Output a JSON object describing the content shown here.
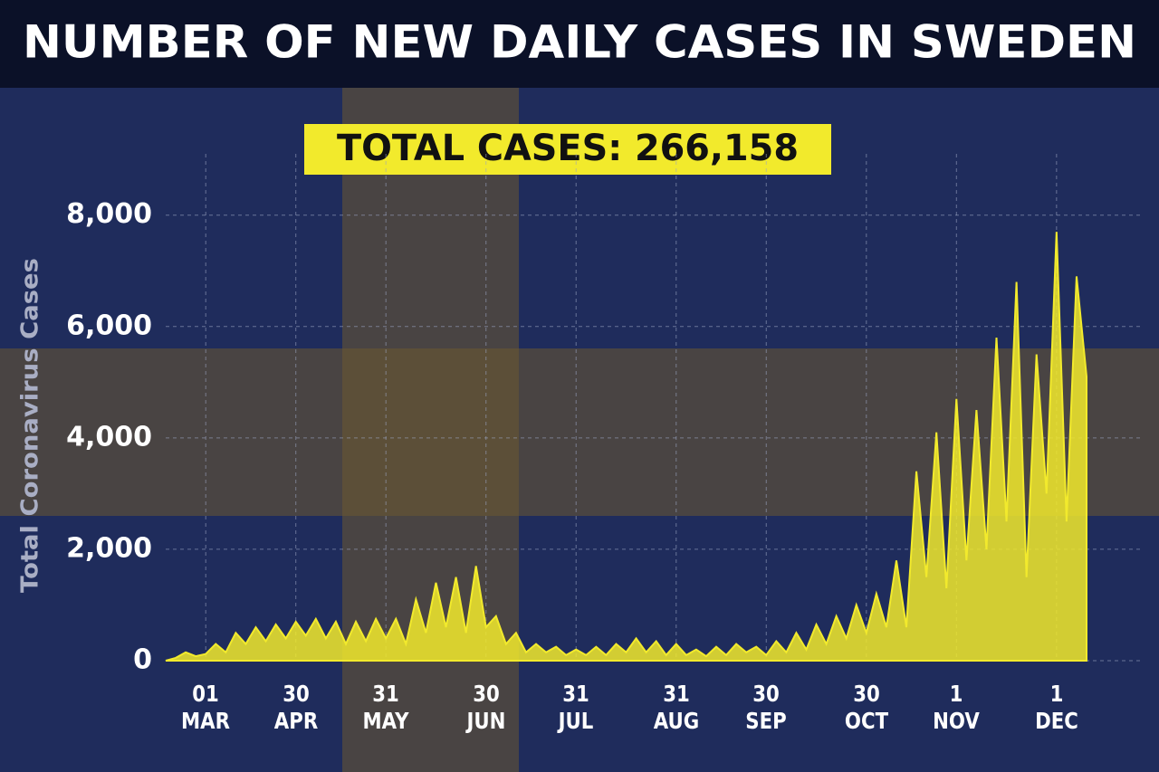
{
  "chart_data": {
    "type": "area",
    "title": "NUMBER OF NEW DAILY CASES IN SWEDEN",
    "annotation": "TOTAL CASES: 266,158",
    "y_label": "Total Coronavirus Cases",
    "color": "#f2ea2c",
    "grid": true,
    "categories": [
      null,
      null,
      null,
      null,
      "01\nMAR",
      null,
      null,
      null,
      null,
      null,
      null,
      null,
      null,
      "30\nAPR",
      null,
      null,
      null,
      null,
      null,
      null,
      null,
      null,
      "31\nMAY",
      null,
      null,
      null,
      null,
      null,
      null,
      null,
      null,
      null,
      "30\nJUN",
      null,
      null,
      null,
      null,
      null,
      null,
      null,
      null,
      "31\nJUL",
      null,
      null,
      null,
      null,
      null,
      null,
      null,
      null,
      null,
      "31\nAUG",
      null,
      null,
      null,
      null,
      null,
      null,
      null,
      null,
      "30\nSEP",
      null,
      null,
      null,
      null,
      null,
      null,
      null,
      null,
      null,
      "30\nOCT",
      null,
      null,
      null,
      null,
      null,
      null,
      null,
      null,
      "1\nNOV",
      null,
      null,
      null,
      null,
      null,
      null,
      null,
      null,
      null,
      "1\nDEC",
      null,
      null,
      null
    ],
    "values": [
      0,
      50,
      150,
      80,
      120,
      300,
      150,
      500,
      300,
      600,
      350,
      650,
      400,
      700,
      450,
      750,
      400,
      700,
      300,
      700,
      350,
      750,
      400,
      750,
      300,
      1100,
      500,
      1400,
      600,
      1500,
      500,
      1700,
      600,
      800,
      300,
      500,
      150,
      300,
      150,
      250,
      100,
      200,
      100,
      250,
      100,
      300,
      150,
      400,
      150,
      350,
      100,
      300,
      100,
      200,
      80,
      250,
      100,
      300,
      150,
      250,
      100,
      350,
      150,
      500,
      200,
      650,
      300,
      800,
      400,
      1000,
      500,
      1200,
      600,
      1800,
      600,
      3400,
      1500,
      4100,
      1300,
      4700,
      1800,
      4500,
      2000,
      5800,
      2500,
      6800,
      1500,
      5500,
      3000,
      7700,
      2500,
      6900,
      5100
    ],
    "ylim": [
      0,
      9100
    ],
    "yticks": [
      0,
      {
        "value": 2000,
        "label": "2,000"
      },
      {
        "value": 4000,
        "label": "4,000"
      },
      {
        "value": 6000,
        "label": "6,000"
      },
      {
        "value": 8000,
        "label": "8,000"
      }
    ]
  }
}
